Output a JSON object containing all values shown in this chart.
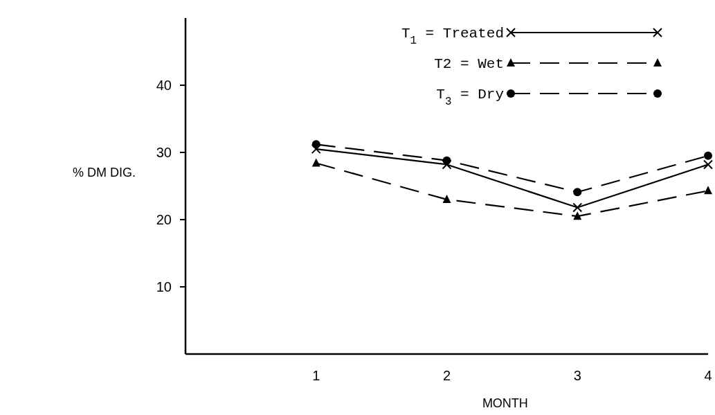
{
  "chart_data": {
    "type": "line",
    "xlabel": "MONTH",
    "ylabel": "% DM DIG.",
    "x": [
      1,
      2,
      3,
      4
    ],
    "xlim": [
      0,
      4
    ],
    "xticks": [
      1,
      2,
      3,
      4
    ],
    "ylim": [
      0,
      50
    ],
    "yticks": [
      10,
      20,
      30,
      40
    ],
    "legend": "top right",
    "grid": false,
    "series": [
      {
        "name": "T$_{1}$ = Treated",
        "color": "#000000",
        "marker": "cross",
        "line_style": "solid",
        "values": [
          30.5,
          28.2,
          21.8,
          28.2
        ]
      },
      {
        "name": "T2 = Wet",
        "color": "#000000",
        "marker": "triangle",
        "line_style": "dashed",
        "values": [
          28.4,
          23.0,
          20.5,
          24.3
        ]
      },
      {
        "name": "T$_{3}$ = Dry",
        "color": "#000000",
        "marker": "circle",
        "line_style": "dashed",
        "values": [
          31.2,
          28.8,
          24.1,
          29.5
        ]
      }
    ]
  }
}
